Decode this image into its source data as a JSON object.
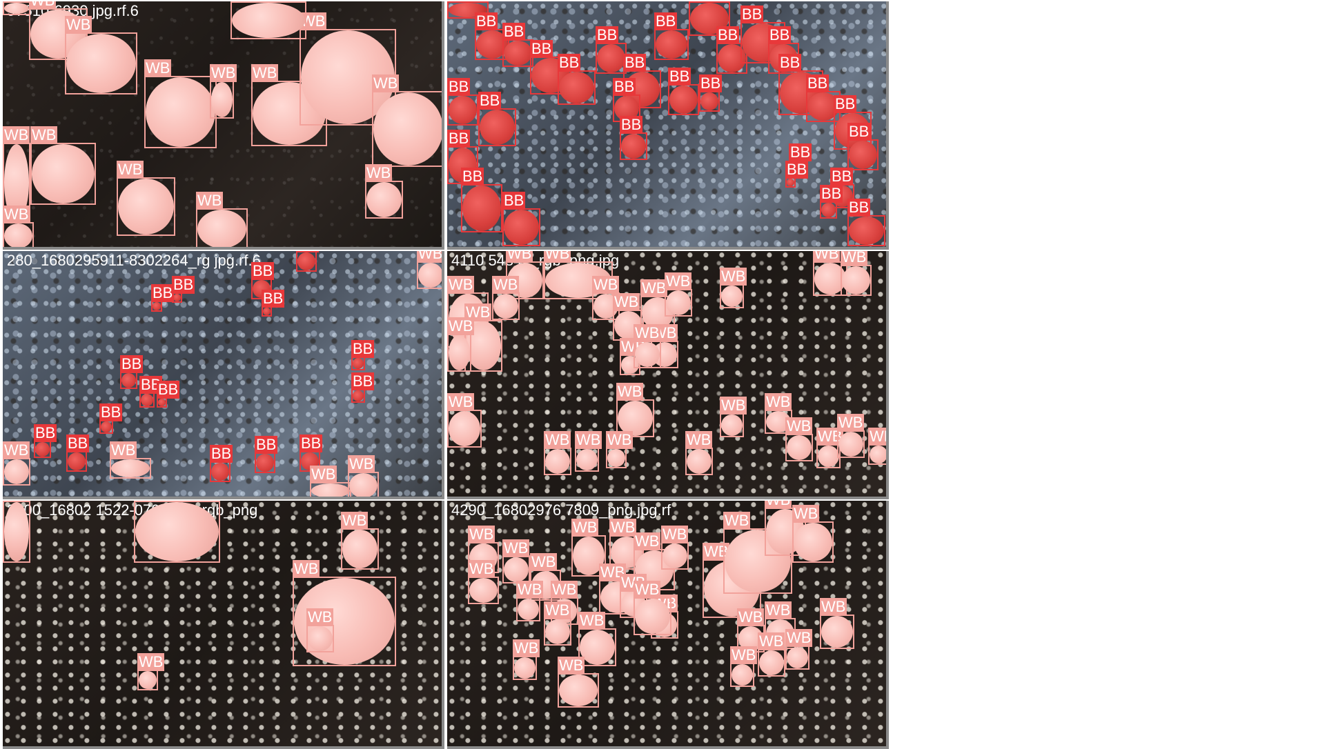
{
  "colors": {
    "WB": "#f2a29b",
    "BB": "#e8383a",
    "tile_border": "#8a8a8a"
  },
  "tiles": [
    {
      "filename": "97510-6930",
      "filename_suffix": "jpg.rf.6",
      "background": "dark",
      "detections": [
        {
          "label": "WB"
        },
        {
          "label": "WB"
        },
        {
          "label": "WB"
        },
        {
          "label": "WB"
        },
        {
          "label": "WB"
        },
        {
          "label": "WB"
        },
        {
          "label": "WB"
        },
        {
          "label": "WB"
        },
        {
          "label": "WB"
        },
        {
          "label": "WB"
        },
        {
          "label": "WB"
        },
        {
          "label": "WB"
        },
        {
          "label": "WB"
        },
        {
          "label": "WB"
        },
        {
          "label": "WB"
        }
      ]
    },
    {
      "filename": "",
      "filename_suffix": "",
      "background": "speckled",
      "detections": [
        {
          "label": "BB"
        },
        {
          "label": "BB"
        },
        {
          "label": "BB"
        },
        {
          "label": "BB"
        },
        {
          "label": "BB"
        },
        {
          "label": "BB"
        },
        {
          "label": "BB"
        },
        {
          "label": "BB"
        },
        {
          "label": "BB"
        },
        {
          "label": "BB"
        },
        {
          "label": "BB"
        },
        {
          "label": "BB"
        },
        {
          "label": "BB"
        },
        {
          "label": "BB"
        },
        {
          "label": "BB"
        },
        {
          "label": "BB"
        },
        {
          "label": "BB"
        },
        {
          "label": "BB"
        },
        {
          "label": "BB"
        },
        {
          "label": "BB"
        },
        {
          "label": "BB"
        },
        {
          "label": "BB"
        },
        {
          "label": "BB"
        },
        {
          "label": "BB"
        },
        {
          "label": "BB"
        },
        {
          "label": "BB"
        },
        {
          "label": "BB"
        },
        {
          "label": "BB"
        },
        {
          "label": "BB"
        },
        {
          "label": "BB"
        }
      ]
    },
    {
      "filename": "280_1680295911-8302264_rg",
      "filename_suffix": "jpg.rf.6",
      "background": "speckled",
      "detections": [
        {
          "label": "BB"
        },
        {
          "label": "BB"
        },
        {
          "label": "BB"
        },
        {
          "label": "BB"
        },
        {
          "label": "BB"
        },
        {
          "label": "BB"
        },
        {
          "label": "BB"
        },
        {
          "label": "BB"
        },
        {
          "label": "BB"
        },
        {
          "label": "BB"
        },
        {
          "label": "BB"
        },
        {
          "label": "BB"
        },
        {
          "label": "BB"
        },
        {
          "label": "BB"
        },
        {
          "label": "BB"
        },
        {
          "label": "BB"
        },
        {
          "label": "WB"
        },
        {
          "label": "WB"
        },
        {
          "label": "WB"
        },
        {
          "label": "WB"
        },
        {
          "label": "WB"
        }
      ]
    },
    {
      "filename": "4110",
      "filename_suffix": "54842_rgb_png.jpg",
      "background": "whitespeck",
      "detections": [
        {
          "label": "WB"
        },
        {
          "label": "WB"
        },
        {
          "label": "WB"
        },
        {
          "label": "WB"
        },
        {
          "label": "WB"
        },
        {
          "label": "WB"
        },
        {
          "label": "WB"
        },
        {
          "label": "WB"
        },
        {
          "label": "WB"
        },
        {
          "label": "WB"
        },
        {
          "label": "WB"
        },
        {
          "label": "WB"
        },
        {
          "label": "WB"
        },
        {
          "label": "WB"
        },
        {
          "label": "WB"
        },
        {
          "label": "WB"
        },
        {
          "label": "WB"
        },
        {
          "label": "WB"
        },
        {
          "label": "WB"
        },
        {
          "label": "WB"
        },
        {
          "label": "WB"
        },
        {
          "label": "WB"
        },
        {
          "label": "WB"
        },
        {
          "label": "WB"
        },
        {
          "label": "WB"
        },
        {
          "label": "WB"
        },
        {
          "label": "WB"
        },
        {
          "label": "WB"
        }
      ]
    },
    {
      "filename": "2900_16802",
      "filename_suffix": "1522-0706887_rgb_png",
      "background": "whitespeck",
      "detections": [
        {
          "label": "WB"
        },
        {
          "label": "WB"
        },
        {
          "label": "WB"
        },
        {
          "label": "WB"
        },
        {
          "label": "WB"
        },
        {
          "label": "WB"
        }
      ]
    },
    {
      "filename": "4290_16802976",
      "filename_suffix": "7809_png.jpg.rf",
      "background": "whitespeck",
      "detections": [
        {
          "label": "WB"
        },
        {
          "label": "WB"
        },
        {
          "label": "WB"
        },
        {
          "label": "WB"
        },
        {
          "label": "WB"
        },
        {
          "label": "WB"
        },
        {
          "label": "WB"
        },
        {
          "label": "WB"
        },
        {
          "label": "WB"
        },
        {
          "label": "WB"
        },
        {
          "label": "WB"
        },
        {
          "label": "WB"
        },
        {
          "label": "WB"
        },
        {
          "label": "WB"
        },
        {
          "label": "WB"
        },
        {
          "label": "WB"
        },
        {
          "label": "WB"
        },
        {
          "label": "WB"
        },
        {
          "label": "WB"
        },
        {
          "label": "WB"
        },
        {
          "label": "WB"
        },
        {
          "label": "WB"
        },
        {
          "label": "WB"
        },
        {
          "label": "WB"
        },
        {
          "label": "WB"
        },
        {
          "label": "WB"
        },
        {
          "label": "WB"
        },
        {
          "label": "WB"
        }
      ]
    }
  ]
}
